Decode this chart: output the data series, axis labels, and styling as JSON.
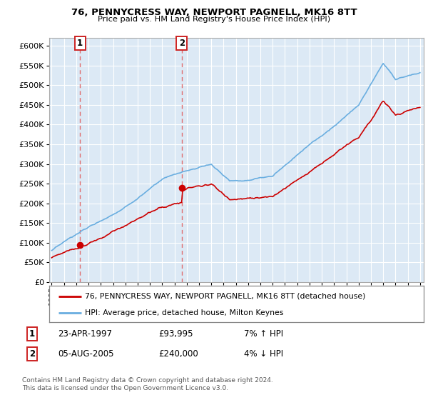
{
  "title1": "76, PENNYCRESS WAY, NEWPORT PAGNELL, MK16 8TT",
  "title2": "Price paid vs. HM Land Registry's House Price Index (HPI)",
  "ytick_values": [
    0,
    50000,
    100000,
    150000,
    200000,
    250000,
    300000,
    350000,
    400000,
    450000,
    500000,
    550000,
    600000
  ],
  "ylim": [
    0,
    620000
  ],
  "xlim_start": 1994.8,
  "xlim_end": 2025.3,
  "sale1_x": 1997.31,
  "sale1_y": 93995,
  "sale2_x": 2005.59,
  "sale2_y": 240000,
  "sale1_label": "1",
  "sale2_label": "2",
  "legend_line1": "76, PENNYCRESS WAY, NEWPORT PAGNELL, MK16 8TT (detached house)",
  "legend_line2": "HPI: Average price, detached house, Milton Keynes",
  "table_row1_num": "1",
  "table_row1_date": "23-APR-1997",
  "table_row1_price": "£93,995",
  "table_row1_hpi": "7% ↑ HPI",
  "table_row2_num": "2",
  "table_row2_date": "05-AUG-2005",
  "table_row2_price": "£240,000",
  "table_row2_hpi": "4% ↓ HPI",
  "footer": "Contains HM Land Registry data © Crown copyright and database right 2024.\nThis data is licensed under the Open Government Licence v3.0.",
  "bg_color": "#dce9f5",
  "grid_color": "#ffffff",
  "red_line_color": "#cc0000",
  "blue_line_color": "#6aaee0",
  "dashed_line_color": "#e06060"
}
